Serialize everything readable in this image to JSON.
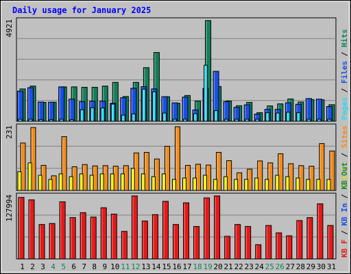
{
  "chart_data": [
    {
      "type": "bar",
      "title": "Daily usage for January 2025",
      "categories": [
        "1",
        "2",
        "3",
        "4",
        "5",
        "6",
        "7",
        "8",
        "9",
        "10",
        "11",
        "12",
        "13",
        "14",
        "15",
        "16",
        "17",
        "18",
        "19",
        "20",
        "21",
        "22",
        "23",
        "24",
        "25",
        "26",
        "27",
        "28",
        "29",
        "30",
        "31"
      ],
      "weekend_days": [
        "4",
        "5",
        "11",
        "12",
        "18",
        "19",
        "25",
        "26"
      ],
      "y_max_label": "4921",
      "ylim": [
        0,
        4921
      ],
      "series": [
        {
          "name": "Hits",
          "color": "#128059",
          "values": [
            1580,
            1720,
            920,
            930,
            1680,
            1680,
            1660,
            1660,
            1720,
            1900,
            1210,
            1900,
            2620,
            3360,
            1200,
            880,
            1260,
            990,
            4921,
            1700,
            990,
            760,
            920,
            420,
            750,
            850,
            1090,
            940,
            1060,
            1050,
            810
          ]
        },
        {
          "name": "Files",
          "color": "#1a4fe6",
          "values": [
            1470,
            1640,
            940,
            930,
            1680,
            1080,
            960,
            980,
            980,
            880,
            1150,
            1610,
            1690,
            1580,
            1200,
            900,
            1180,
            550,
            1600,
            2440,
            960,
            680,
            800,
            350,
            580,
            580,
            900,
            830,
            1110,
            1080,
            720
          ]
        },
        {
          "name": "Pages",
          "color": "#26d9f2",
          "values": [
            100,
            100,
            80,
            80,
            100,
            80,
            560,
            660,
            650,
            840,
            300,
            360,
            1570,
            1440,
            400,
            100,
            100,
            370,
            2740,
            520,
            100,
            100,
            100,
            100,
            420,
            400,
            440,
            420,
            100,
            100,
            100
          ]
        }
      ]
    },
    {
      "type": "bar",
      "y_max_label": "231",
      "ylim": [
        0,
        231
      ],
      "series": [
        {
          "name": "Visits",
          "color": "#f2f200",
          "values": [
            68,
            100,
            55,
            40,
            60,
            50,
            60,
            55,
            60,
            60,
            60,
            80,
            60,
            50,
            60,
            40,
            45,
            45,
            55,
            40,
            50,
            40,
            40,
            45,
            40,
            55,
            50,
            45,
            40,
            40,
            40
          ]
        },
        {
          "name": "Sites",
          "color": "#f28c1b",
          "values": [
            172,
            228,
            91,
            53,
            195,
            86,
            94,
            89,
            90,
            88,
            90,
            136,
            138,
            114,
            160,
            231,
            91,
            95,
            92,
            138,
            108,
            64,
            77,
            107,
            100,
            133,
            97,
            90,
            88,
            170,
            143
          ]
        }
      ]
    },
    {
      "type": "bar",
      "y_max_label": "127994",
      "ylim": [
        0,
        127994
      ],
      "series": [
        {
          "name": "KB F",
          "color": "#e61919",
          "values": [
            125000,
            120000,
            70000,
            72000,
            116000,
            84000,
            94000,
            85000,
            104000,
            91000,
            56000,
            128000,
            77000,
            90000,
            117000,
            70000,
            114000,
            66000,
            124000,
            127994,
            46000,
            70000,
            66000,
            29000,
            68000,
            53000,
            47000,
            78000,
            84000,
            112000,
            68000
          ]
        },
        {
          "name": "KB In",
          "color": "#1a4fe6",
          "values": []
        },
        {
          "name": "KB Out",
          "color": "#128059",
          "values": []
        }
      ]
    }
  ],
  "right_legends": [
    [
      {
        "text": "Pages",
        "color": "#26d9f2"
      },
      {
        "text": " / ",
        "color": "#000000"
      },
      {
        "text": "Files",
        "color": "#1a4fe6"
      },
      {
        "text": " / ",
        "color": "#000000"
      },
      {
        "text": "Hits",
        "color": "#128059"
      }
    ],
    [
      {
        "text": "Visits",
        "color": "#dcdc00"
      },
      {
        "text": " / ",
        "color": "#000000"
      },
      {
        "text": "Sites",
        "color": "#f28c1b"
      }
    ],
    [
      {
        "text": "KB F",
        "color": "#e61919"
      },
      {
        "text": " / ",
        "color": "#000000"
      },
      {
        "text": "KB In",
        "color": "#1a4fe6"
      },
      {
        "text": " / ",
        "color": "#000000"
      },
      {
        "text": "KB Out",
        "color": "#128059"
      }
    ]
  ],
  "colors": {
    "background": "#c0c0c0",
    "plot_background": "#c0c0c0",
    "gridline": "#808080",
    "title": "#0000ff",
    "weekend_label": "#128059",
    "weekday_label": "#000000"
  }
}
